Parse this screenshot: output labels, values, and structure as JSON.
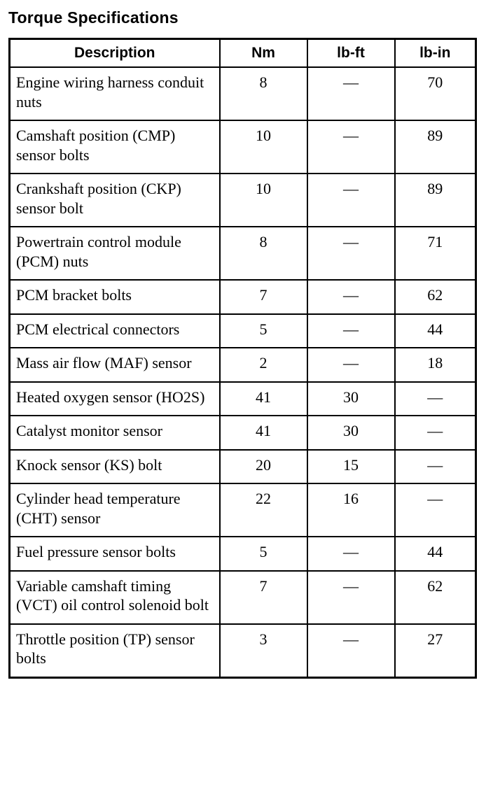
{
  "page": {
    "title": "Torque Specifications"
  },
  "table": {
    "columns": [
      "Description",
      "Nm",
      "lb-ft",
      "lb-in"
    ],
    "rows": [
      {
        "description": "Engine wiring harness conduit nuts",
        "nm": "8",
        "lb_ft": "—",
        "lb_in": "70"
      },
      {
        "description": "Camshaft position (CMP) sensor bolts",
        "nm": "10",
        "lb_ft": "—",
        "lb_in": "89"
      },
      {
        "description": "Crankshaft position (CKP) sensor bolt",
        "nm": "10",
        "lb_ft": "—",
        "lb_in": "89"
      },
      {
        "description": "Powertrain control module (PCM) nuts",
        "nm": "8",
        "lb_ft": "—",
        "lb_in": "71"
      },
      {
        "description": "PCM bracket bolts",
        "nm": "7",
        "lb_ft": "—",
        "lb_in": "62"
      },
      {
        "description": "PCM electrical connectors",
        "nm": "5",
        "lb_ft": "—",
        "lb_in": "44"
      },
      {
        "description": "Mass air flow (MAF) sensor",
        "nm": "2",
        "lb_ft": "—",
        "lb_in": "18"
      },
      {
        "description": "Heated oxygen sensor (HO2S)",
        "nm": "41",
        "lb_ft": "30",
        "lb_in": "—"
      },
      {
        "description": "Catalyst monitor sensor",
        "nm": "41",
        "lb_ft": "30",
        "lb_in": "—"
      },
      {
        "description": "Knock sensor (KS) bolt",
        "nm": "20",
        "lb_ft": "15",
        "lb_in": "—"
      },
      {
        "description": "Cylinder head temperature (CHT) sensor",
        "nm": "22",
        "lb_ft": "16",
        "lb_in": "—"
      },
      {
        "description": "Fuel pressure sensor bolts",
        "nm": "5",
        "lb_ft": "—",
        "lb_in": "44"
      },
      {
        "description": "Variable camshaft timing (VCT) oil control solenoid bolt",
        "nm": "7",
        "lb_ft": "—",
        "lb_in": "62"
      },
      {
        "description": "Throttle position (TP) sensor bolts",
        "nm": "3",
        "lb_ft": "—",
        "lb_in": "27"
      }
    ]
  }
}
